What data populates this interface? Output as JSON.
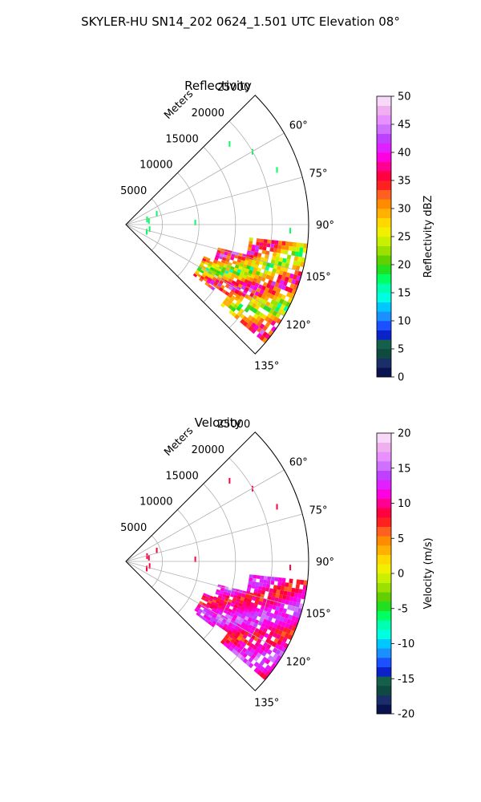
{
  "figure": {
    "title": "SKYLER-HU  SN14_202  0624_1.501 UTC Elevation 08°"
  },
  "chart_data": [
    {
      "type": "heatmap",
      "projection": "polar-sector",
      "title": "Reflectivity",
      "radial_label": "Meters",
      "radial_ticks": [
        5000,
        10000,
        15000,
        20000,
        25000
      ],
      "r_max": 25000,
      "theta_range_deg": [
        45,
        135
      ],
      "angle_ticks": [
        "60°",
        "75°",
        "90°",
        "105°",
        "120°",
        "135°"
      ],
      "grid": true,
      "colorbar": {
        "label": "Reflectivity dBZ",
        "range": [
          0,
          50
        ],
        "ticks": [
          0,
          5,
          10,
          15,
          20,
          25,
          30,
          35,
          40,
          45,
          50
        ],
        "colors": [
          "#0a1350",
          "#1a2f6a",
          "#0f4a40",
          "#14604a",
          "#0a22c8",
          "#1a50ff",
          "#1a90ff",
          "#00c8ff",
          "#00ffe0",
          "#00ffb0",
          "#00ff60",
          "#20e020",
          "#60d000",
          "#9ae000",
          "#c8f000",
          "#f0f000",
          "#ffd800",
          "#ffb000",
          "#ff8c00",
          "#ff6020",
          "#ff2020",
          "#ff0040",
          "#ff0090",
          "#ff00e0",
          "#e020ff",
          "#c040ff",
          "#d070ff",
          "#e890ff",
          "#f0b0f0",
          "#f8d8f8"
        ]
      },
      "echo_regions": [
        {
          "theta": [
            96,
            130
          ],
          "r": [
            17000,
            25000
          ]
        },
        {
          "theta": [
            104,
            124
          ],
          "r": [
            13000,
            19000
          ]
        },
        {
          "theta": [
            112,
            126
          ],
          "r": [
            11500,
            15000
          ]
        }
      ],
      "echo_values_range": [
        15,
        45
      ]
    },
    {
      "type": "heatmap",
      "projection": "polar-sector",
      "title": "Velocity",
      "radial_label": "Meters",
      "radial_ticks": [
        5000,
        10000,
        15000,
        20000,
        25000
      ],
      "r_max": 25000,
      "theta_range_deg": [
        45,
        135
      ],
      "angle_ticks": [
        "60°",
        "75°",
        "90°",
        "105°",
        "120°",
        "135°"
      ],
      "grid": true,
      "colorbar": {
        "label": "Velocity (m/s)",
        "range": [
          -20,
          20
        ],
        "ticks": [
          -20,
          -15,
          -10,
          -5,
          0,
          5,
          10,
          15,
          20
        ],
        "colors": [
          "#0a1350",
          "#1a2f6a",
          "#0f4a40",
          "#14604a",
          "#0a22c8",
          "#1a50ff",
          "#1a90ff",
          "#00c8ff",
          "#00ffe0",
          "#00ffb0",
          "#00ff60",
          "#20e020",
          "#60d000",
          "#9ae000",
          "#c8f000",
          "#f0f000",
          "#ffd800",
          "#ffb000",
          "#ff8c00",
          "#ff6020",
          "#ff2020",
          "#ff0040",
          "#ff0090",
          "#ff00e0",
          "#e020ff",
          "#c040ff",
          "#d070ff",
          "#e890ff",
          "#f0b0f0",
          "#f8d8f8"
        ]
      },
      "echo_regions": [
        {
          "theta": [
            96,
            130
          ],
          "r": [
            17000,
            25000
          ]
        },
        {
          "theta": [
            104,
            124
          ],
          "r": [
            13000,
            19000
          ]
        },
        {
          "theta": [
            112,
            126
          ],
          "r": [
            11500,
            15000
          ]
        }
      ],
      "echo_values_range": [
        5,
        17
      ]
    }
  ]
}
